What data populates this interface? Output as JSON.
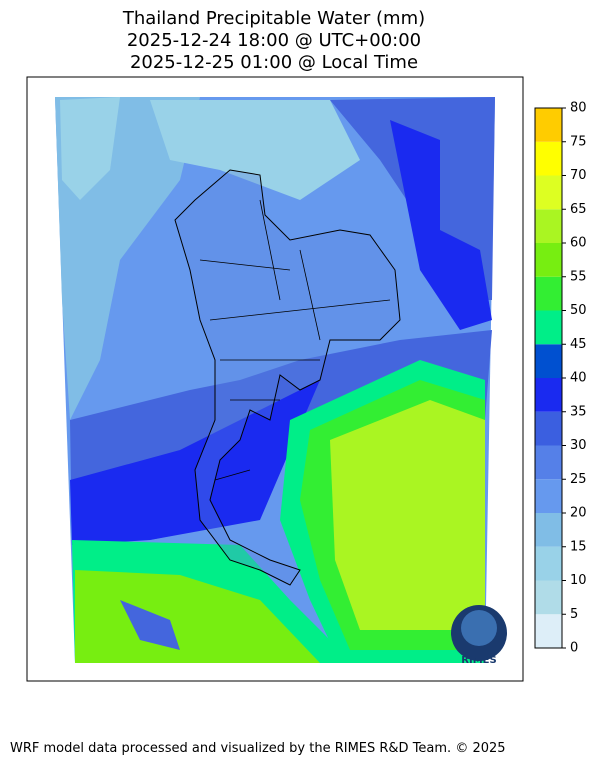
{
  "title": [
    "Thailand Precipitable Water (mm)",
    "2025-12-24 18:00 @ UTC+00:00",
    "2025-12-25 01:00 @ Local Time"
  ],
  "colorbar": {
    "ticks": [
      0,
      5,
      10,
      15,
      20,
      25,
      30,
      35,
      40,
      45,
      50,
      55,
      60,
      65,
      70,
      75,
      80
    ],
    "colors": [
      "#ddeef8",
      "#b0dce8",
      "#99d2e8",
      "#80bde6",
      "#6699ee",
      "#5580e8",
      "#3b5fe0",
      "#1a2af0",
      "#0050d0",
      "#00ee88",
      "#33ee33",
      "#77ee11",
      "#aaf522",
      "#ddff22",
      "#ffff00",
      "#ffcc00"
    ]
  },
  "logo": "RIMES",
  "footer": "WRF model data processed and visualized by the RIMES R&D Team. © 2025"
}
